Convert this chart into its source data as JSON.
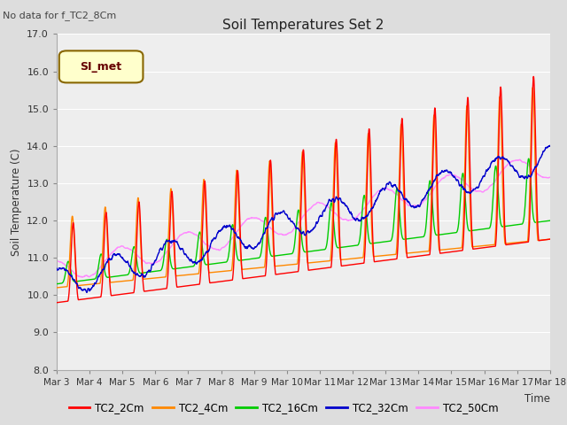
{
  "title": "Soil Temperatures Set 2",
  "no_data_text": "No data for f_TC2_8Cm",
  "xlabel": "Time",
  "ylabel": "Soil Temperature (C)",
  "ylim": [
    8.0,
    17.0
  ],
  "yticks": [
    8.0,
    9.0,
    10.0,
    11.0,
    12.0,
    13.0,
    14.0,
    15.0,
    16.0,
    17.0
  ],
  "xtick_labels": [
    "Mar 3",
    "Mar 4",
    "Mar 5",
    "Mar 6",
    "Mar 7",
    "Mar 8",
    "Mar 9",
    "Mar 10",
    "Mar 11",
    "Mar 12",
    "Mar 13",
    "Mar 14",
    "Mar 15",
    "Mar 16",
    "Mar 17",
    "Mar 18"
  ],
  "series_colors": {
    "TC2_2Cm": "#ff0000",
    "TC2_4Cm": "#ff8800",
    "TC2_16Cm": "#00cc00",
    "TC2_32Cm": "#0000cc",
    "TC2_50Cm": "#ff88ff"
  },
  "legend_label": "SI_met",
  "legend_bg": "#ffffcc",
  "legend_border": "#886600",
  "bg_color": "#dddddd",
  "plot_bg": "#eeeeee",
  "grid_color": "#ffffff",
  "days": 15,
  "n_points": 2160
}
